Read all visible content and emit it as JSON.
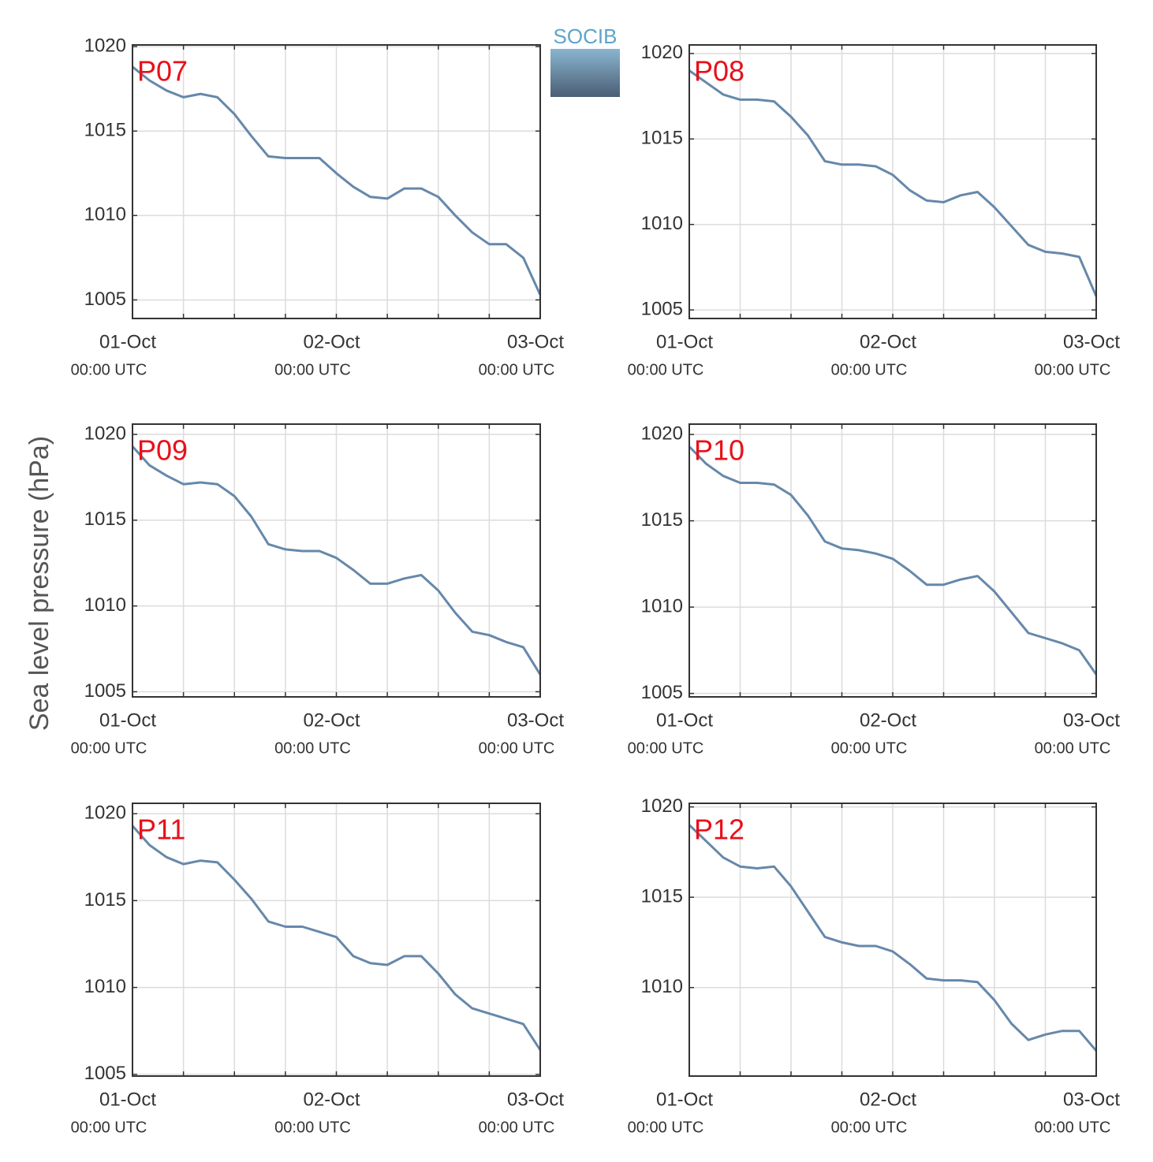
{
  "ylabel": "Sea level pressure (hPa)",
  "logo": "SOCIB",
  "chart_data": [
    {
      "type": "line",
      "title": "P07",
      "color": "#6688aa",
      "title_color": "#e8101a",
      "grid": true,
      "x": [
        "01-Oct 00:00",
        "01-Oct 02:00",
        "01-Oct 04:00",
        "01-Oct 06:00",
        "01-Oct 08:00",
        "01-Oct 10:00",
        "01-Oct 12:00",
        "01-Oct 14:00",
        "01-Oct 16:00",
        "01-Oct 18:00",
        "01-Oct 20:00",
        "01-Oct 22:00",
        "02-Oct 00:00",
        "02-Oct 02:00",
        "02-Oct 04:00",
        "02-Oct 06:00",
        "02-Oct 08:00",
        "02-Oct 10:00",
        "02-Oct 12:00",
        "02-Oct 14:00",
        "02-Oct 16:00",
        "02-Oct 18:00",
        "02-Oct 20:00",
        "02-Oct 22:00",
        "03-Oct 00:00"
      ],
      "values": [
        1018.8,
        1018.0,
        1017.4,
        1017.0,
        1017.2,
        1017.0,
        1016.0,
        1014.7,
        1013.5,
        1013.4,
        1013.4,
        1013.4,
        1012.5,
        1011.7,
        1011.1,
        1011.0,
        1011.6,
        1011.6,
        1011.1,
        1010.0,
        1009.0,
        1008.3,
        1008.3,
        1007.5,
        1005.3
      ],
      "xlim": [
        "01-Oct 00:00",
        "03-Oct 00:00"
      ],
      "xticks": [
        {
          "value": "01-Oct 00:00",
          "label": "01-Oct",
          "sublabel": "00:00 UTC"
        },
        {
          "value": "02-Oct 00:00",
          "label": "02-Oct",
          "sublabel": "00:00 UTC"
        },
        {
          "value": "03-Oct 00:00",
          "label": "03-Oct",
          "sublabel": "00:00 UTC"
        }
      ],
      "xminor": [
        "01-Oct 06:00",
        "01-Oct 12:00",
        "01-Oct 18:00",
        "02-Oct 06:00",
        "02-Oct 12:00",
        "02-Oct 18:00"
      ],
      "ylim": [
        1003.9,
        1020.1
      ],
      "yticks": [
        1005,
        1010,
        1015,
        1020
      ]
    },
    {
      "type": "line",
      "title": "P08",
      "color": "#6688aa",
      "title_color": "#e8101a",
      "grid": true,
      "x": [
        "01-Oct 00:00",
        "01-Oct 02:00",
        "01-Oct 04:00",
        "01-Oct 06:00",
        "01-Oct 08:00",
        "01-Oct 10:00",
        "01-Oct 12:00",
        "01-Oct 14:00",
        "01-Oct 16:00",
        "01-Oct 18:00",
        "01-Oct 20:00",
        "01-Oct 22:00",
        "02-Oct 00:00",
        "02-Oct 02:00",
        "02-Oct 04:00",
        "02-Oct 06:00",
        "02-Oct 08:00",
        "02-Oct 10:00",
        "02-Oct 12:00",
        "02-Oct 14:00",
        "02-Oct 16:00",
        "02-Oct 18:00",
        "02-Oct 20:00",
        "02-Oct 22:00",
        "03-Oct 00:00"
      ],
      "values": [
        1019.0,
        1018.3,
        1017.6,
        1017.3,
        1017.3,
        1017.2,
        1016.3,
        1015.2,
        1013.7,
        1013.5,
        1013.5,
        1013.4,
        1012.9,
        1012.0,
        1011.4,
        1011.3,
        1011.7,
        1011.9,
        1011.0,
        1009.9,
        1008.8,
        1008.4,
        1008.3,
        1008.1,
        1005.8
      ],
      "xlim": [
        "01-Oct 00:00",
        "03-Oct 00:00"
      ],
      "xticks": [
        {
          "value": "01-Oct 00:00",
          "label": "01-Oct",
          "sublabel": "00:00 UTC"
        },
        {
          "value": "02-Oct 00:00",
          "label": "02-Oct",
          "sublabel": "00:00 UTC"
        },
        {
          "value": "03-Oct 00:00",
          "label": "03-Oct",
          "sublabel": "00:00 UTC"
        }
      ],
      "xminor": [
        "01-Oct 06:00",
        "01-Oct 12:00",
        "01-Oct 18:00",
        "02-Oct 06:00",
        "02-Oct 12:00",
        "02-Oct 18:00"
      ],
      "ylim": [
        1004.5,
        1020.5
      ],
      "yticks": [
        1005,
        1010,
        1015,
        1020
      ]
    },
    {
      "type": "line",
      "title": "P09",
      "color": "#6688aa",
      "title_color": "#e8101a",
      "grid": true,
      "x": [
        "01-Oct 00:00",
        "01-Oct 02:00",
        "01-Oct 04:00",
        "01-Oct 06:00",
        "01-Oct 08:00",
        "01-Oct 10:00",
        "01-Oct 12:00",
        "01-Oct 14:00",
        "01-Oct 16:00",
        "01-Oct 18:00",
        "01-Oct 20:00",
        "01-Oct 22:00",
        "02-Oct 00:00",
        "02-Oct 02:00",
        "02-Oct 04:00",
        "02-Oct 06:00",
        "02-Oct 08:00",
        "02-Oct 10:00",
        "02-Oct 12:00",
        "02-Oct 14:00",
        "02-Oct 16:00",
        "02-Oct 18:00",
        "02-Oct 20:00",
        "02-Oct 22:00",
        "03-Oct 00:00"
      ],
      "values": [
        1019.3,
        1018.2,
        1017.6,
        1017.1,
        1017.2,
        1017.1,
        1016.4,
        1015.2,
        1013.6,
        1013.3,
        1013.2,
        1013.2,
        1012.8,
        1012.1,
        1011.3,
        1011.3,
        1011.6,
        1011.8,
        1010.9,
        1009.6,
        1008.5,
        1008.3,
        1007.9,
        1007.6,
        1006.0
      ],
      "xlim": [
        "01-Oct 00:00",
        "03-Oct 00:00"
      ],
      "xticks": [
        {
          "value": "01-Oct 00:00",
          "label": "01-Oct",
          "sublabel": "00:00 UTC"
        },
        {
          "value": "02-Oct 00:00",
          "label": "02-Oct",
          "sublabel": "00:00 UTC"
        },
        {
          "value": "03-Oct 00:00",
          "label": "03-Oct",
          "sublabel": "00:00 UTC"
        }
      ],
      "xminor": [
        "01-Oct 06:00",
        "01-Oct 12:00",
        "01-Oct 18:00",
        "02-Oct 06:00",
        "02-Oct 12:00",
        "02-Oct 18:00"
      ],
      "ylim": [
        1004.7,
        1020.6
      ],
      "yticks": [
        1005,
        1010,
        1015,
        1020
      ]
    },
    {
      "type": "line",
      "title": "P10",
      "color": "#6688aa",
      "title_color": "#e8101a",
      "grid": true,
      "x": [
        "01-Oct 00:00",
        "01-Oct 02:00",
        "01-Oct 04:00",
        "01-Oct 06:00",
        "01-Oct 08:00",
        "01-Oct 10:00",
        "01-Oct 12:00",
        "01-Oct 14:00",
        "01-Oct 16:00",
        "01-Oct 18:00",
        "01-Oct 20:00",
        "01-Oct 22:00",
        "02-Oct 00:00",
        "02-Oct 02:00",
        "02-Oct 04:00",
        "02-Oct 06:00",
        "02-Oct 08:00",
        "02-Oct 10:00",
        "02-Oct 12:00",
        "02-Oct 14:00",
        "02-Oct 16:00",
        "02-Oct 18:00",
        "02-Oct 20:00",
        "02-Oct 22:00",
        "03-Oct 00:00"
      ],
      "values": [
        1019.3,
        1018.3,
        1017.6,
        1017.2,
        1017.2,
        1017.1,
        1016.5,
        1015.3,
        1013.8,
        1013.4,
        1013.3,
        1013.1,
        1012.8,
        1012.1,
        1011.3,
        1011.3,
        1011.6,
        1011.8,
        1010.9,
        1009.7,
        1008.5,
        1008.2,
        1007.9,
        1007.5,
        1006.1
      ],
      "xlim": [
        "01-Oct 00:00",
        "03-Oct 00:00"
      ],
      "xticks": [
        {
          "value": "01-Oct 00:00",
          "label": "01-Oct",
          "sublabel": "00:00 UTC"
        },
        {
          "value": "02-Oct 00:00",
          "label": "02-Oct",
          "sublabel": "00:00 UTC"
        },
        {
          "value": "03-Oct 00:00",
          "label": "03-Oct",
          "sublabel": "00:00 UTC"
        }
      ],
      "xminor": [
        "01-Oct 06:00",
        "01-Oct 12:00",
        "01-Oct 18:00",
        "02-Oct 06:00",
        "02-Oct 12:00",
        "02-Oct 18:00"
      ],
      "ylim": [
        1004.8,
        1020.6
      ],
      "yticks": [
        1005,
        1010,
        1015,
        1020
      ]
    },
    {
      "type": "line",
      "title": "P11",
      "color": "#6688aa",
      "title_color": "#e8101a",
      "grid": true,
      "x": [
        "01-Oct 00:00",
        "01-Oct 02:00",
        "01-Oct 04:00",
        "01-Oct 06:00",
        "01-Oct 08:00",
        "01-Oct 10:00",
        "01-Oct 12:00",
        "01-Oct 14:00",
        "01-Oct 16:00",
        "01-Oct 18:00",
        "01-Oct 20:00",
        "01-Oct 22:00",
        "02-Oct 00:00",
        "02-Oct 02:00",
        "02-Oct 04:00",
        "02-Oct 06:00",
        "02-Oct 08:00",
        "02-Oct 10:00",
        "02-Oct 12:00",
        "02-Oct 14:00",
        "02-Oct 16:00",
        "02-Oct 18:00",
        "02-Oct 20:00",
        "02-Oct 22:00",
        "03-Oct 00:00"
      ],
      "values": [
        1019.3,
        1018.2,
        1017.5,
        1017.1,
        1017.3,
        1017.2,
        1016.2,
        1015.1,
        1013.8,
        1013.5,
        1013.5,
        1013.2,
        1012.9,
        1011.8,
        1011.4,
        1011.3,
        1011.8,
        1011.8,
        1010.8,
        1009.6,
        1008.8,
        1008.5,
        1008.2,
        1007.9,
        1006.4
      ],
      "xlim": [
        "01-Oct 00:00",
        "03-Oct 00:00"
      ],
      "xticks": [
        {
          "value": "01-Oct 00:00",
          "label": "01-Oct",
          "sublabel": "00:00 UTC"
        },
        {
          "value": "02-Oct 00:00",
          "label": "02-Oct",
          "sublabel": "00:00 UTC"
        },
        {
          "value": "03-Oct 00:00",
          "label": "03-Oct",
          "sublabel": "00:00 UTC"
        }
      ],
      "xminor": [
        "01-Oct 06:00",
        "01-Oct 12:00",
        "01-Oct 18:00",
        "02-Oct 06:00",
        "02-Oct 12:00",
        "02-Oct 18:00"
      ],
      "ylim": [
        1004.9,
        1020.6
      ],
      "yticks": [
        1005,
        1010,
        1015,
        1020
      ]
    },
    {
      "type": "line",
      "title": "P12",
      "color": "#6688aa",
      "title_color": "#e8101a",
      "grid": true,
      "x": [
        "01-Oct 00:00",
        "01-Oct 02:00",
        "01-Oct 04:00",
        "01-Oct 06:00",
        "01-Oct 08:00",
        "01-Oct 10:00",
        "01-Oct 12:00",
        "01-Oct 14:00",
        "01-Oct 16:00",
        "01-Oct 18:00",
        "01-Oct 20:00",
        "01-Oct 22:00",
        "02-Oct 00:00",
        "02-Oct 02:00",
        "02-Oct 04:00",
        "02-Oct 06:00",
        "02-Oct 08:00",
        "02-Oct 10:00",
        "02-Oct 12:00",
        "02-Oct 14:00",
        "02-Oct 16:00",
        "02-Oct 18:00",
        "02-Oct 20:00",
        "02-Oct 22:00",
        "03-Oct 00:00"
      ],
      "values": [
        1019.0,
        1018.1,
        1017.2,
        1016.7,
        1016.6,
        1016.7,
        1015.6,
        1014.2,
        1012.8,
        1012.5,
        1012.3,
        1012.3,
        1012.0,
        1011.3,
        1010.5,
        1010.4,
        1010.4,
        1010.3,
        1009.3,
        1008.0,
        1007.1,
        1007.4,
        1007.6,
        1007.6,
        1006.5
      ],
      "xlim": [
        "01-Oct 00:00",
        "03-Oct 00:00"
      ],
      "xticks": [
        {
          "value": "01-Oct 00:00",
          "label": "01-Oct",
          "sublabel": "00:00 UTC"
        },
        {
          "value": "02-Oct 00:00",
          "label": "02-Oct",
          "sublabel": "00:00 UTC"
        },
        {
          "value": "03-Oct 00:00",
          "label": "03-Oct",
          "sublabel": "00:00 UTC"
        }
      ],
      "xminor": [
        "01-Oct 06:00",
        "01-Oct 12:00",
        "01-Oct 18:00",
        "02-Oct 06:00",
        "02-Oct 12:00",
        "02-Oct 18:00"
      ],
      "ylim": [
        1005.1,
        1020.2
      ],
      "yticks": [
        1010,
        1015,
        1020
      ]
    }
  ]
}
